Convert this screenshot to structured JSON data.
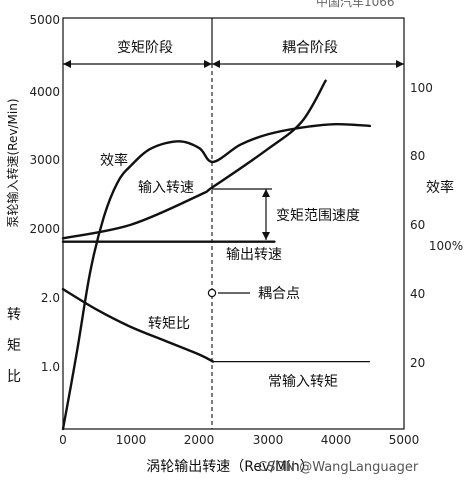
{
  "chart_data": {
    "type": "line",
    "x_axis": {
      "label": "涡轮输出转速（Rev/Min）",
      "range": [
        0,
        5000
      ],
      "ticks": [
        "0",
        "1000",
        "2000",
        "3000",
        "4000",
        "5000"
      ]
    },
    "y_axis_left_speed": {
      "label": "泵轮输入转速(Rev/Min)",
      "ticks": [
        "2000",
        "3000",
        "4000",
        "5000"
      ]
    },
    "y_axis_left_torque": {
      "label": "转矩比",
      "ticks": [
        "1.0",
        "2.0"
      ]
    },
    "y_axis_right": {
      "label": "效率",
      "unit": "100%",
      "range": [
        0,
        120
      ],
      "ticks": [
        "20",
        "40",
        "60",
        "80",
        "100"
      ]
    },
    "stages": [
      {
        "label": "变矩阶段",
        "x_range": [
          0,
          2200
        ]
      },
      {
        "label": "耦合阶段",
        "x_range": [
          2200,
          5000
        ]
      }
    ],
    "coupling_point_x": 2200,
    "series": [
      {
        "name": "输入转速",
        "points": [
          [
            0,
            1850
          ],
          [
            1000,
            2050
          ],
          [
            2000,
            2480
          ],
          [
            2200,
            2600
          ],
          [
            3000,
            3150
          ],
          [
            3500,
            3550
          ],
          [
            3850,
            4150
          ]
        ]
      },
      {
        "name": "输出转速",
        "points": [
          [
            0,
            1800
          ],
          [
            3100,
            1800
          ]
        ]
      },
      {
        "name": "效率",
        "points": [
          [
            0,
            0
          ],
          [
            200,
            22
          ],
          [
            400,
            46
          ],
          [
            600,
            62
          ],
          [
            800,
            72
          ],
          [
            1000,
            77
          ],
          [
            1300,
            82
          ],
          [
            1700,
            84
          ],
          [
            2000,
            82
          ],
          [
            2200,
            78
          ],
          [
            2600,
            83
          ],
          [
            3000,
            86
          ],
          [
            3500,
            88
          ],
          [
            4000,
            89
          ],
          [
            4500,
            88.5
          ]
        ]
      },
      {
        "name": "转矩比",
        "points": [
          [
            0,
            2.1
          ],
          [
            500,
            1.8
          ],
          [
            1000,
            1.55
          ],
          [
            1500,
            1.35
          ],
          [
            2000,
            1.15
          ],
          [
            2200,
            1.05
          ]
        ]
      },
      {
        "name": "常输入转矩",
        "points": [
          [
            2200,
            1.05
          ],
          [
            4500,
            1.05
          ]
        ]
      }
    ],
    "annotations": [
      {
        "text": "变矩范围速度"
      },
      {
        "text": "耦合点"
      }
    ],
    "grid": false
  },
  "watermark": {
    "bottom": "CSDN @WangLanguager",
    "top": "中国汽车1066"
  }
}
